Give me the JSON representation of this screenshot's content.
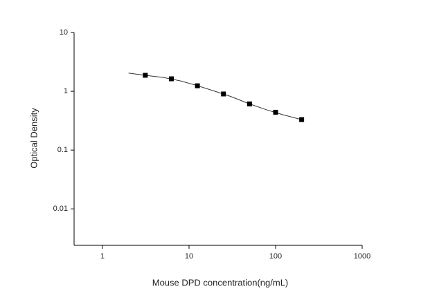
{
  "chart_data": {
    "type": "scatter",
    "x_label": "Mouse DPD concentration(ng/mL)",
    "y_label": "Optical Density",
    "xscale": "log",
    "yscale": "log",
    "xlim": [
      0.47,
      1000
    ],
    "ylim": [
      0.0024,
      10
    ],
    "xticks": [
      1,
      10,
      100,
      1000
    ],
    "yticks": [
      10,
      1,
      0.1,
      0.01
    ],
    "series": [
      {
        "kind": "points",
        "color": "#000000",
        "x": [
          3.125,
          6.25,
          12.5,
          25,
          50,
          100,
          200
        ],
        "values": [
          1.87,
          1.63,
          1.24,
          0.9,
          0.61,
          0.44,
          0.33
        ]
      },
      {
        "kind": "fit",
        "color": "#333333",
        "x": [
          2,
          3,
          5,
          8,
          12,
          20,
          30,
          50,
          80,
          120,
          200
        ],
        "values": [
          2.04,
          1.88,
          1.72,
          1.5,
          1.27,
          1.0,
          0.82,
          0.61,
          0.48,
          0.4,
          0.33
        ]
      }
    ]
  }
}
